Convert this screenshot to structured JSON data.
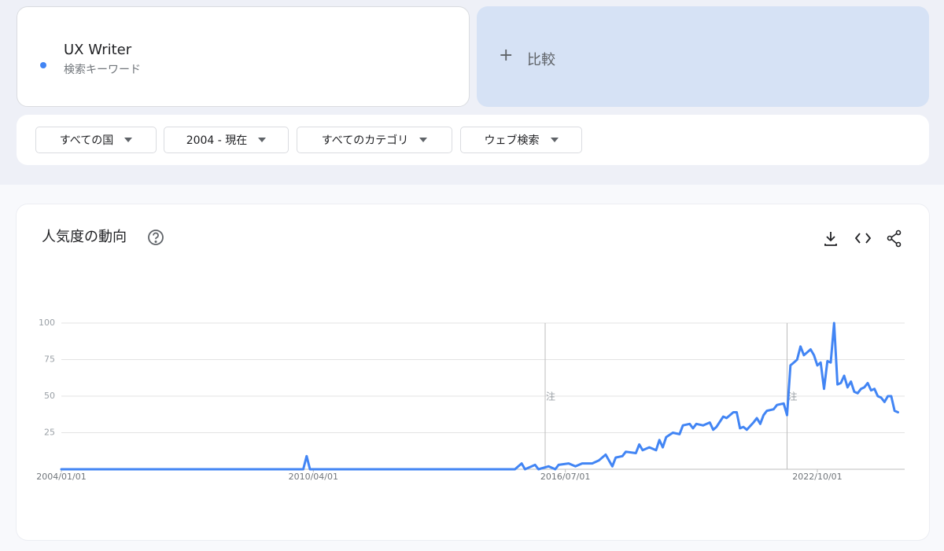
{
  "search": {
    "term": "UX Writer",
    "subtitle": "検索キーワード",
    "compare": "比較"
  },
  "filters": [
    "すべての国",
    "2004 - 現在",
    "すべてのカテゴリ",
    "ウェブ検索"
  ],
  "chart_data": {
    "type": "line",
    "title": "人気度の動向",
    "color": "#4285f4",
    "x": [
      "2004/01/01",
      "2010/01/01",
      "2010/02/01",
      "2010/03/01",
      "2015/04/01",
      "2015/06/01",
      "2015/07/01",
      "2015/10/01",
      "2015/11/01",
      "2016/02/01",
      "2016/04/01",
      "2016/05/01",
      "2016/08/01",
      "2016/10/01",
      "2016/12/01",
      "2017/03/01",
      "2017/05/01",
      "2017/07/01",
      "2017/09/01",
      "2017/10/01",
      "2017/12/01",
      "2018/01/01",
      "2018/04/01",
      "2018/05/01",
      "2018/06/01",
      "2018/08/01",
      "2018/10/01",
      "2018/11/01",
      "2018/12/01",
      "2019/01/01",
      "2019/03/01",
      "2019/05/01",
      "2019/06/01",
      "2019/08/01",
      "2019/09/01",
      "2019/10/01",
      "2019/12/01",
      "2020/02/01",
      "2020/03/01",
      "2020/04/01",
      "2020/06/01",
      "2020/07/01",
      "2020/09/01",
      "2020/10/01",
      "2020/11/01",
      "2020/12/01",
      "2021/01/01",
      "2021/03/01",
      "2021/04/01",
      "2021/05/01",
      "2021/06/01",
      "2021/07/01",
      "2021/09/01",
      "2021/10/01",
      "2021/12/01",
      "2022/01/01",
      "2022/02/01",
      "2022/03/01",
      "2022/04/01",
      "2022/05/01",
      "2022/06/01",
      "2022/07/01",
      "2022/08/01",
      "2022/09/01",
      "2022/10/01",
      "2022/11/01",
      "2022/12/01",
      "2023/01/01",
      "2023/02/01",
      "2023/03/01",
      "2023/04/01",
      "2023/05/01",
      "2023/06/01",
      "2023/07/01",
      "2023/08/01",
      "2023/09/01",
      "2023/10/01",
      "2023/11/01",
      "2023/12/01",
      "2024/01/01",
      "2024/02/01",
      "2024/03/01",
      "2024/04/01",
      "2024/05/01",
      "2024/06/01",
      "2024/07/01",
      "2024/08/01",
      "2024/09/01",
      "2024/10/01"
    ],
    "values": [
      0,
      0,
      9,
      0,
      0,
      4,
      0,
      3,
      0,
      2,
      0,
      3,
      4,
      2,
      4,
      4,
      6,
      10,
      2,
      8,
      9,
      12,
      11,
      17,
      13,
      15,
      13,
      20,
      15,
      22,
      25,
      24,
      30,
      31,
      28,
      31,
      30,
      32,
      27,
      29,
      36,
      35,
      39,
      39,
      28,
      29,
      27,
      32,
      35,
      31,
      37,
      40,
      41,
      44,
      45,
      37,
      71,
      73,
      75,
      84,
      78,
      80,
      82,
      78,
      71,
      73,
      55,
      74,
      73,
      100,
      58,
      59,
      64,
      56,
      60,
      53,
      52,
      55,
      56,
      59,
      54,
      55,
      50,
      49,
      46,
      50,
      50,
      40,
      39
    ],
    "xlim": [
      "2004/01/01",
      "2024/12/01"
    ],
    "xticks": [
      "2004/01/01",
      "2010/04/01",
      "2016/07/01",
      "2022/10/01"
    ],
    "ylim": [
      0,
      100
    ],
    "yticks": [
      25,
      50,
      75,
      100
    ],
    "grid": true,
    "annotations": [
      {
        "x": "2016/01/01",
        "label": "注"
      },
      {
        "x": "2022/01/01",
        "label": "注"
      }
    ]
  }
}
